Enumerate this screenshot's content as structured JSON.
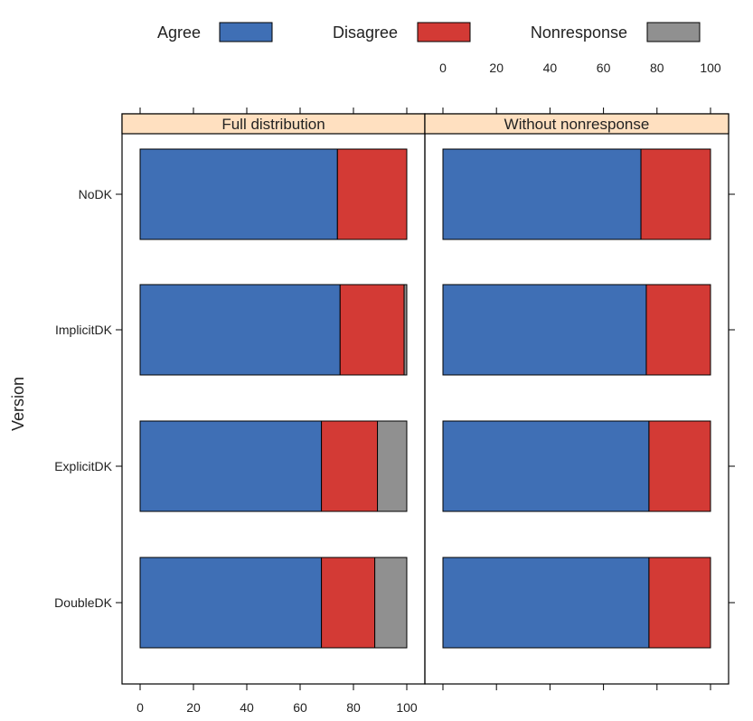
{
  "chart_data": {
    "type": "bar",
    "orientation": "horizontal",
    "stacked": true,
    "ylabel": "Version",
    "xlim": [
      0,
      100
    ],
    "x_ticks": [
      0,
      20,
      40,
      60,
      80,
      100
    ],
    "x_tick_labels": [
      "0",
      "20",
      "40",
      "60",
      "80",
      "100"
    ],
    "grid": false,
    "legend_position": "top",
    "categories": [
      "NoDK",
      "ImplicitDK",
      "ExplicitDK",
      "DoubleDK"
    ],
    "legend": [
      {
        "name": "Agree",
        "color": "#3f6fb5"
      },
      {
        "name": "Disagree",
        "color": "#d33a35"
      },
      {
        "name": "Nonresponse",
        "color": "#909090"
      }
    ],
    "panels": [
      {
        "title": "Full distribution",
        "series": [
          {
            "name": "Agree",
            "values": [
              74,
              75,
              68,
              68
            ]
          },
          {
            "name": "Disagree",
            "values": [
              26,
              24,
              21,
              20
            ]
          },
          {
            "name": "Nonresponse",
            "values": [
              0,
              1,
              11,
              12
            ]
          }
        ]
      },
      {
        "title": "Without nonresponse",
        "series": [
          {
            "name": "Agree",
            "values": [
              74,
              76,
              77,
              77
            ]
          },
          {
            "name": "Disagree",
            "values": [
              26,
              24,
              23,
              23
            ]
          },
          {
            "name": "Nonresponse",
            "values": [
              0,
              0,
              0,
              0
            ]
          }
        ]
      }
    ]
  }
}
